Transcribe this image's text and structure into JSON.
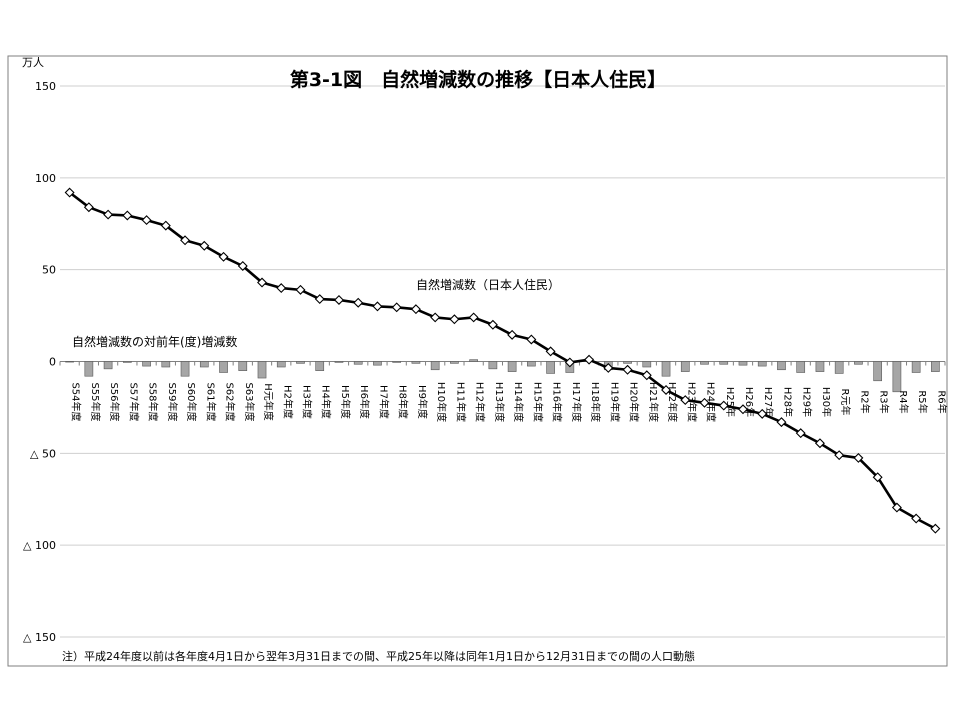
{
  "chart_data": {
    "type": "line",
    "title": "第3-1図　自然増減数の推移【日本人住民】",
    "yunit": "万人",
    "ylim": [
      -150,
      150
    ],
    "yticks": [
      150,
      100,
      50,
      0,
      -50,
      -100,
      -150
    ],
    "ytick_labels": [
      "150",
      "100",
      "50",
      "0",
      "△ 50",
      "△ 100",
      "△ 150"
    ],
    "grid": true,
    "categories": [
      "S54年度",
      "S55年度",
      "S56年度",
      "S57年度",
      "S58年度",
      "S59年度",
      "S60年度",
      "S61年度",
      "S62年度",
      "S63年度",
      "H元年度",
      "H2年度",
      "H3年度",
      "H4年度",
      "H5年度",
      "H6年度",
      "H7年度",
      "H8年度",
      "H9年度",
      "H10年度",
      "H11年度",
      "H12年度",
      "H13年度",
      "H14年度",
      "H15年度",
      "H16年度",
      "H17年度",
      "H18年度",
      "H19年度",
      "H20年度",
      "H21年度",
      "H22年度",
      "H23年度",
      "H24年度",
      "H25年",
      "H26年",
      "H27年",
      "H28年",
      "H29年",
      "H30年",
      "R元年",
      "R2年",
      "R3年",
      "R4年",
      "R5年",
      "R6年"
    ],
    "series": [
      {
        "name": "自然増減数（日本人住民）",
        "kind": "line",
        "values": [
          92,
          84,
          80,
          79.5,
          77,
          74,
          66,
          63,
          57,
          52,
          43,
          40,
          39,
          34,
          33.5,
          32,
          30,
          29.5,
          28.5,
          24,
          23,
          24,
          20,
          14.5,
          12,
          5.5,
          -0.5,
          1,
          -3.5,
          -4.5,
          -7.5,
          -15.5,
          -21,
          -22.5,
          -24,
          -26,
          -28.5,
          -33,
          -39,
          -44.5,
          -51,
          -52.5,
          -63,
          -79.5,
          -85.5,
          -91
        ]
      },
      {
        "name": "自然増減数の対前年(度)増減数",
        "kind": "bar",
        "values": [
          0,
          -8,
          -4,
          -0.5,
          -2.5,
          -3,
          -8,
          -3,
          -6,
          -5,
          -9,
          -3,
          -1,
          -5,
          -0.5,
          -1.5,
          -2,
          -0.5,
          -1,
          -4.5,
          -1,
          1,
          -4,
          -5.5,
          -2.5,
          -6.5,
          -6,
          1.5,
          -4.5,
          -1,
          -3,
          -8,
          -5.5,
          -1.5,
          -1.5,
          -2,
          -2.5,
          -4.5,
          -6,
          -5.5,
          -6.5,
          -1.5,
          -10.5,
          -16.5,
          -6,
          -5.5
        ]
      }
    ],
    "annotations": [
      "自然増減数（日本人住民）",
      "自然増減数の対前年(度)増減数"
    ],
    "note": "注）平成24年度以前は各年度4月1日から翌年3月31日までの間、平成25年以降は同年1月1日から12月31日までの間の人口動態"
  }
}
